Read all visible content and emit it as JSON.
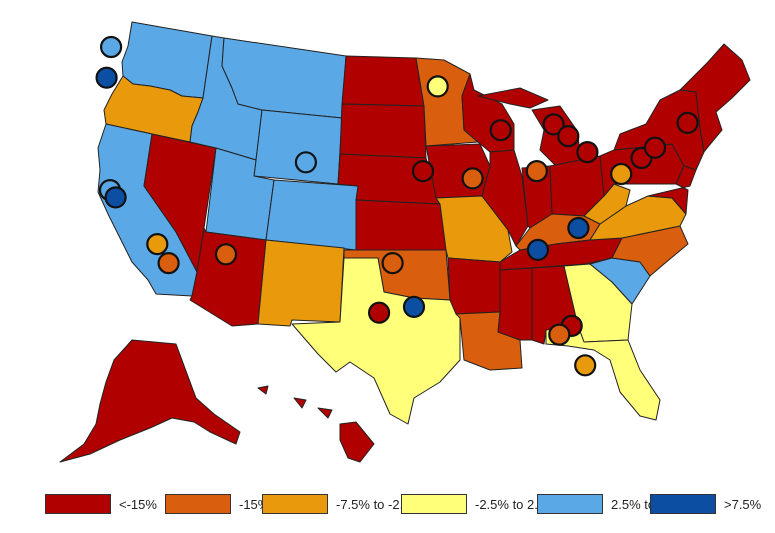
{
  "legend": {
    "bins": [
      {
        "key": "lt-15",
        "label": "<-15%",
        "color": "#b00000"
      },
      {
        "key": "m15-m7.5",
        "label": "-15% to -7.5%",
        "color": "#d95f0e"
      },
      {
        "key": "m7.5-m2.5",
        "label": "-7.5% to -2.5%",
        "color": "#e8990c"
      },
      {
        "key": "m2.5-p2.5",
        "label": "-2.5% to 2.5%",
        "color": "#ffff7a"
      },
      {
        "key": "p2.5-p7.5",
        "label": "2.5% to 7.5%",
        "color": "#5ba8e6"
      },
      {
        "key": "gt7.5",
        "label": ">7.5%",
        "color": "#0b4ea2"
      }
    ]
  },
  "states": {
    "WA": "p2.5-p7.5",
    "OR": "m7.5-m2.5",
    "CA": "p2.5-p7.5",
    "NV": "lt-15",
    "ID": "p2.5-p7.5",
    "MT": "p2.5-p7.5",
    "WY": "p2.5-p7.5",
    "UT": "p2.5-p7.5",
    "CO": "p2.5-p7.5",
    "AZ": "lt-15",
    "NM": "m7.5-m2.5",
    "ND": "lt-15",
    "SD": "lt-15",
    "NE": "lt-15",
    "KS": "lt-15",
    "OK": "m15-m7.5",
    "TX": "m2.5-p2.5",
    "MN": "m15-m7.5",
    "IA": "lt-15",
    "MO": "m7.5-m2.5",
    "AR": "lt-15",
    "LA": "m15-m7.5",
    "WI": "lt-15",
    "IL": "lt-15",
    "MI": "lt-15",
    "IN": "lt-15",
    "OH": "lt-15",
    "KY": "m15-m7.5",
    "TN": "lt-15",
    "MS": "lt-15",
    "AL": "lt-15",
    "GA": "m2.5-p2.5",
    "FL": "m2.5-p2.5",
    "SC": "p2.5-p7.5",
    "NC": "m15-m7.5",
    "VA": "m7.5-m2.5",
    "WV": "m7.5-m2.5",
    "PA": "lt-15",
    "NY": "lt-15",
    "NE_REGION": "lt-15",
    "AK": "lt-15",
    "HI": "lt-15"
  },
  "cities": [
    {
      "lon": -122.3,
      "lat": 47.6,
      "bin": "p2.5-p7.5"
    },
    {
      "lon": -122.7,
      "lat": 45.5,
      "bin": "gt7.5"
    },
    {
      "lon": -122.4,
      "lat": 37.8,
      "bin": "p2.5-p7.5"
    },
    {
      "lon": -121.9,
      "lat": 37.3,
      "bin": "gt7.5"
    },
    {
      "lon": -118.2,
      "lat": 34.1,
      "bin": "m7.5-m2.5"
    },
    {
      "lon": -117.2,
      "lat": 32.8,
      "bin": "m15-m7.5"
    },
    {
      "lon": -112.1,
      "lat": 33.4,
      "bin": "m15-m7.5"
    },
    {
      "lon": -105.0,
      "lat": 39.7,
      "bin": "p2.5-p7.5"
    },
    {
      "lon": -93.3,
      "lat": 44.9,
      "bin": "m2.5-p2.5"
    },
    {
      "lon": -97.3,
      "lat": 32.8,
      "bin": "m15-m7.5"
    },
    {
      "lon": -98.5,
      "lat": 29.4,
      "bin": "lt-15"
    },
    {
      "lon": -95.4,
      "lat": 29.8,
      "bin": "gt7.5"
    },
    {
      "lon": -94.6,
      "lat": 39.1,
      "bin": "lt-15"
    },
    {
      "lon": -90.2,
      "lat": 38.6,
      "bin": "m15-m7.5"
    },
    {
      "lon": -87.7,
      "lat": 41.9,
      "bin": "lt-15"
    },
    {
      "lon": -83.0,
      "lat": 42.3,
      "bin": "lt-15"
    },
    {
      "lon": -81.7,
      "lat": 41.5,
      "bin": "lt-15"
    },
    {
      "lon": -84.5,
      "lat": 39.1,
      "bin": "m15-m7.5"
    },
    {
      "lon": -80.0,
      "lat": 40.4,
      "bin": "lt-15"
    },
    {
      "lon": -77.0,
      "lat": 38.9,
      "bin": "m7.5-m2.5"
    },
    {
      "lon": -75.2,
      "lat": 40.0,
      "bin": "lt-15"
    },
    {
      "lon": -74.0,
      "lat": 40.7,
      "bin": "lt-15"
    },
    {
      "lon": -71.1,
      "lat": 42.4,
      "bin": "lt-15"
    },
    {
      "lon": -80.8,
      "lat": 35.2,
      "bin": "gt7.5"
    },
    {
      "lon": -84.4,
      "lat": 33.7,
      "bin": "gt7.5"
    },
    {
      "lon": -81.4,
      "lat": 28.5,
      "bin": "lt-15"
    },
    {
      "lon": -82.5,
      "lat": 27.9,
      "bin": "m15-m7.5"
    },
    {
      "lon": -80.2,
      "lat": 25.8,
      "bin": "m7.5-m2.5"
    }
  ]
}
